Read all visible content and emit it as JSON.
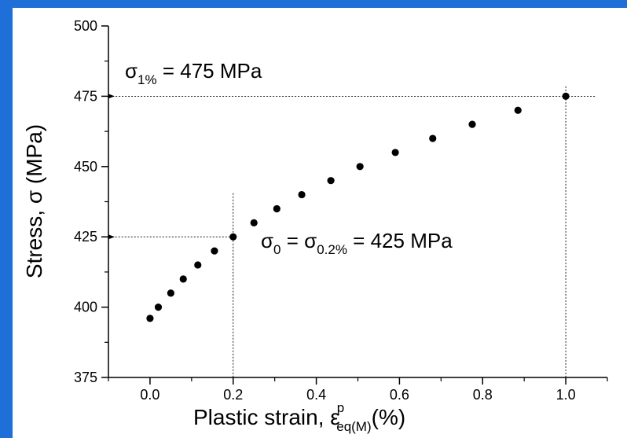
{
  "chart_data": {
    "type": "scatter",
    "xlabel": {
      "main": "Plastic strain, ε",
      "sup": "p",
      "sub": "eq(M)",
      "suffix": "(%)"
    },
    "ylabel": "Stress, σ (MPa)",
    "xlim": [
      -0.1,
      1.1
    ],
    "ylim": [
      375,
      500
    ],
    "xticks": [
      "0.0",
      "0.2",
      "0.4",
      "0.6",
      "0.8",
      "1.0"
    ],
    "yticks": [
      "375",
      "400",
      "425",
      "450",
      "475",
      "500"
    ],
    "grid": false,
    "series": [
      {
        "x": [
          0.0,
          0.02,
          0.05,
          0.08,
          0.115,
          0.155,
          0.2,
          0.25,
          0.305,
          0.365,
          0.435,
          0.505,
          0.59,
          0.68,
          0.775,
          0.885,
          1.0
        ],
        "y": [
          396,
          400,
          405,
          410,
          415,
          420,
          425,
          430,
          435,
          440,
          445,
          450,
          455,
          460,
          465,
          470,
          475
        ]
      }
    ],
    "annotations": [
      {
        "sigma": "σ",
        "sub": "1%",
        "rest": " = 475 MPa",
        "x": 1.0,
        "y": 475
      },
      {
        "sigma": "σ",
        "sub": "0",
        "mid": " = σ",
        "sub2": "0.2%",
        "rest": " = 425 MPa",
        "x": 0.2,
        "y": 425
      }
    ]
  },
  "colors": {
    "frame": "#1e6fd8",
    "marker": "#000000"
  }
}
